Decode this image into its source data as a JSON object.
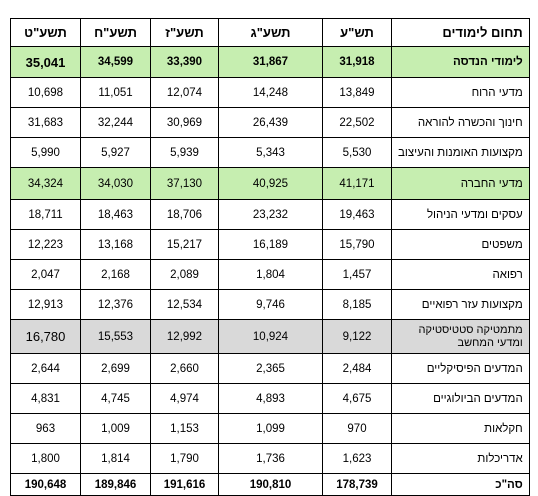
{
  "columns": [
    "תשע\"ט",
    "תשע\"ח",
    "תשע\"ז",
    "תשע\"ג",
    "תש\"ע",
    "תחום לימודים"
  ],
  "rows": [
    {
      "label": "לימודי הנדסה",
      "style": "grp-green bold",
      "values": [
        "35,041",
        "34,599",
        "33,390",
        "31,867",
        "31,918"
      ]
    },
    {
      "label": "מדעי הרוח",
      "style": "",
      "values": [
        "10,698",
        "11,051",
        "12,074",
        "14,248",
        "13,849"
      ]
    },
    {
      "label": "חינוך והכשרה להוראה",
      "style": "",
      "values": [
        "31,683",
        "32,244",
        "30,969",
        "26,439",
        "22,502"
      ]
    },
    {
      "label": "מקצועות האומנות והעיצוב",
      "style": "",
      "values": [
        "5,990",
        "5,927",
        "5,939",
        "5,343",
        "5,530"
      ]
    },
    {
      "label": "מדעי החברה",
      "style": "grp-green",
      "values": [
        "34,324",
        "34,030",
        "37,130",
        "40,925",
        "41,171"
      ]
    },
    {
      "label": "עסקים ומדעי הניהול",
      "style": "",
      "values": [
        "18,711",
        "18,463",
        "18,706",
        "23,232",
        "19,463"
      ]
    },
    {
      "label": "משפטים",
      "style": "",
      "values": [
        "12,223",
        "13,168",
        "15,217",
        "16,189",
        "15,790"
      ]
    },
    {
      "label": "רפואה",
      "style": "",
      "values": [
        "2,047",
        "2,168",
        "2,089",
        "1,804",
        "1,457"
      ]
    },
    {
      "label": "מקצועות עזר רפואיים",
      "style": "",
      "values": [
        "12,913",
        "12,376",
        "12,534",
        "9,746",
        "8,185"
      ]
    },
    {
      "label": "מתמטיקה סטטיסטיקה ומדעי המחשב",
      "style": "grp-gray",
      "values": [
        "16,780",
        "15,553",
        "12,992",
        "10,924",
        "9,122"
      ]
    },
    {
      "label": "המדעים הפיסיקליים",
      "style": "",
      "values": [
        "2,644",
        "2,699",
        "2,660",
        "2,365",
        "2,484"
      ]
    },
    {
      "label": "המדעים הביולוגיים",
      "style": "",
      "values": [
        "4,831",
        "4,745",
        "4,974",
        "4,893",
        "4,675"
      ]
    },
    {
      "label": "חקלאות",
      "style": "",
      "values": [
        "963",
        "1,009",
        "1,153",
        "1,099",
        "970"
      ]
    },
    {
      "label": "אדריכלות",
      "style": "",
      "values": [
        "1,800",
        "1,814",
        "1,790",
        "1,736",
        "1,623"
      ]
    },
    {
      "label": "סה\"כ",
      "style": "total",
      "values": [
        "190,648",
        "189,846",
        "191,616",
        "190,810",
        "178,739"
      ]
    }
  ]
}
